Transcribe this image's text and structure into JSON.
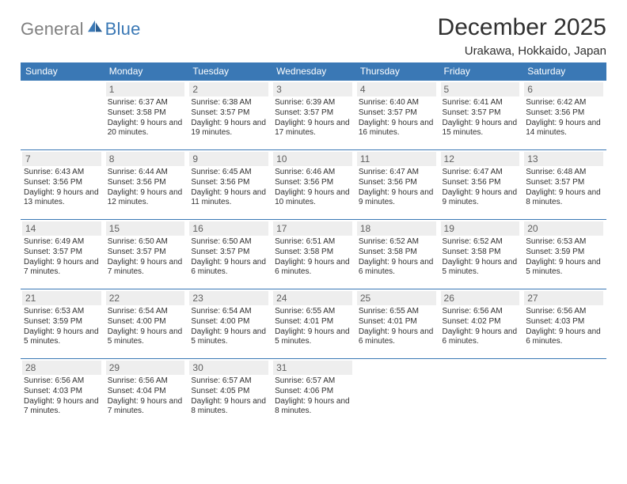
{
  "brand": {
    "text1": "General",
    "text2": "Blue"
  },
  "title": "December 2025",
  "location": "Urakawa, Hokkaido, Japan",
  "colors": {
    "header_bg": "#3a78b5",
    "header_text": "#ffffff",
    "row_divider": "#3a78b5",
    "daynum_bg": "#eeeeee",
    "daynum_text": "#606060",
    "body_text": "#303030",
    "logo_gray": "#808080",
    "logo_blue": "#3a78b5",
    "page_bg": "#ffffff"
  },
  "typography": {
    "title_fontsize": 30,
    "location_fontsize": 15,
    "weekday_fontsize": 12,
    "daynum_fontsize": 12,
    "cell_fontsize": 10,
    "logo_fontsize": 22
  },
  "weekdays": [
    "Sunday",
    "Monday",
    "Tuesday",
    "Wednesday",
    "Thursday",
    "Friday",
    "Saturday"
  ],
  "weeks": [
    [
      null,
      {
        "n": "1",
        "sr": "6:37 AM",
        "ss": "3:58 PM",
        "dl": "9 hours and 20 minutes."
      },
      {
        "n": "2",
        "sr": "6:38 AM",
        "ss": "3:57 PM",
        "dl": "9 hours and 19 minutes."
      },
      {
        "n": "3",
        "sr": "6:39 AM",
        "ss": "3:57 PM",
        "dl": "9 hours and 17 minutes."
      },
      {
        "n": "4",
        "sr": "6:40 AM",
        "ss": "3:57 PM",
        "dl": "9 hours and 16 minutes."
      },
      {
        "n": "5",
        "sr": "6:41 AM",
        "ss": "3:57 PM",
        "dl": "9 hours and 15 minutes."
      },
      {
        "n": "6",
        "sr": "6:42 AM",
        "ss": "3:56 PM",
        "dl": "9 hours and 14 minutes."
      }
    ],
    [
      {
        "n": "7",
        "sr": "6:43 AM",
        "ss": "3:56 PM",
        "dl": "9 hours and 13 minutes."
      },
      {
        "n": "8",
        "sr": "6:44 AM",
        "ss": "3:56 PM",
        "dl": "9 hours and 12 minutes."
      },
      {
        "n": "9",
        "sr": "6:45 AM",
        "ss": "3:56 PM",
        "dl": "9 hours and 11 minutes."
      },
      {
        "n": "10",
        "sr": "6:46 AM",
        "ss": "3:56 PM",
        "dl": "9 hours and 10 minutes."
      },
      {
        "n": "11",
        "sr": "6:47 AM",
        "ss": "3:56 PM",
        "dl": "9 hours and 9 minutes."
      },
      {
        "n": "12",
        "sr": "6:47 AM",
        "ss": "3:56 PM",
        "dl": "9 hours and 9 minutes."
      },
      {
        "n": "13",
        "sr": "6:48 AM",
        "ss": "3:57 PM",
        "dl": "9 hours and 8 minutes."
      }
    ],
    [
      {
        "n": "14",
        "sr": "6:49 AM",
        "ss": "3:57 PM",
        "dl": "9 hours and 7 minutes."
      },
      {
        "n": "15",
        "sr": "6:50 AM",
        "ss": "3:57 PM",
        "dl": "9 hours and 7 minutes."
      },
      {
        "n": "16",
        "sr": "6:50 AM",
        "ss": "3:57 PM",
        "dl": "9 hours and 6 minutes."
      },
      {
        "n": "17",
        "sr": "6:51 AM",
        "ss": "3:58 PM",
        "dl": "9 hours and 6 minutes."
      },
      {
        "n": "18",
        "sr": "6:52 AM",
        "ss": "3:58 PM",
        "dl": "9 hours and 6 minutes."
      },
      {
        "n": "19",
        "sr": "6:52 AM",
        "ss": "3:58 PM",
        "dl": "9 hours and 5 minutes."
      },
      {
        "n": "20",
        "sr": "6:53 AM",
        "ss": "3:59 PM",
        "dl": "9 hours and 5 minutes."
      }
    ],
    [
      {
        "n": "21",
        "sr": "6:53 AM",
        "ss": "3:59 PM",
        "dl": "9 hours and 5 minutes."
      },
      {
        "n": "22",
        "sr": "6:54 AM",
        "ss": "4:00 PM",
        "dl": "9 hours and 5 minutes."
      },
      {
        "n": "23",
        "sr": "6:54 AM",
        "ss": "4:00 PM",
        "dl": "9 hours and 5 minutes."
      },
      {
        "n": "24",
        "sr": "6:55 AM",
        "ss": "4:01 PM",
        "dl": "9 hours and 5 minutes."
      },
      {
        "n": "25",
        "sr": "6:55 AM",
        "ss": "4:01 PM",
        "dl": "9 hours and 6 minutes."
      },
      {
        "n": "26",
        "sr": "6:56 AM",
        "ss": "4:02 PM",
        "dl": "9 hours and 6 minutes."
      },
      {
        "n": "27",
        "sr": "6:56 AM",
        "ss": "4:03 PM",
        "dl": "9 hours and 6 minutes."
      }
    ],
    [
      {
        "n": "28",
        "sr": "6:56 AM",
        "ss": "4:03 PM",
        "dl": "9 hours and 7 minutes."
      },
      {
        "n": "29",
        "sr": "6:56 AM",
        "ss": "4:04 PM",
        "dl": "9 hours and 7 minutes."
      },
      {
        "n": "30",
        "sr": "6:57 AM",
        "ss": "4:05 PM",
        "dl": "9 hours and 8 minutes."
      },
      {
        "n": "31",
        "sr": "6:57 AM",
        "ss": "4:06 PM",
        "dl": "9 hours and 8 minutes."
      },
      null,
      null,
      null
    ]
  ]
}
